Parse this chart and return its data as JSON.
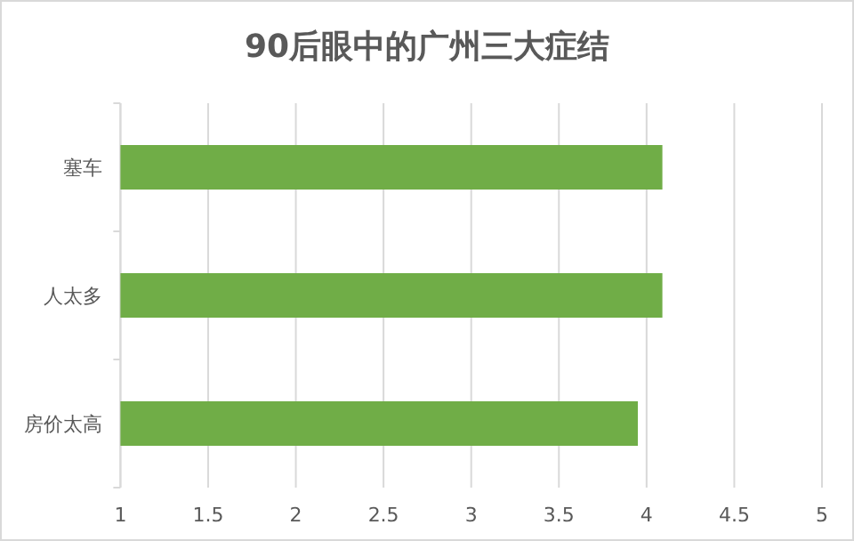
{
  "chart_data": {
    "type": "bar",
    "orientation": "horizontal",
    "title": "90后眼中的广州三大症结",
    "categories": [
      "塞车",
      "人太多",
      "房价太高"
    ],
    "values": [
      4.09,
      4.09,
      3.95
    ],
    "color": "#70ad47",
    "xlim": [
      1,
      5
    ],
    "xticks": [
      1,
      1.5,
      2,
      2.5,
      3,
      3.5,
      4,
      4.5,
      5
    ],
    "grid": "x"
  }
}
